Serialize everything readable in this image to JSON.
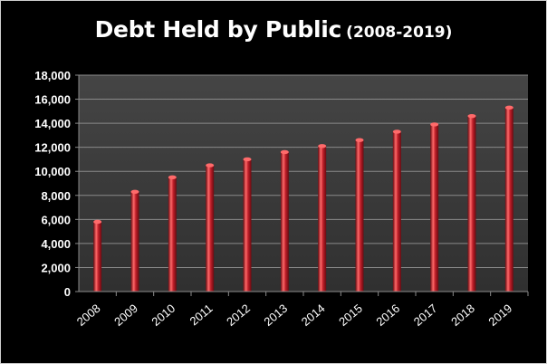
{
  "chart_data": {
    "type": "bar",
    "title": "Debt Held by Public",
    "subtitle": "(2008-2019)",
    "xlabel": "",
    "ylabel": "",
    "categories": [
      "2008",
      "2009",
      "2010",
      "2011",
      "2012",
      "2013",
      "2014",
      "2015",
      "2016",
      "2017",
      "2018",
      "2019"
    ],
    "values": [
      5800,
      8300,
      9500,
      10500,
      11000,
      11600,
      12100,
      12600,
      13300,
      13900,
      14600,
      15300
    ],
    "ylim": [
      0,
      18000
    ],
    "yticks": [
      0,
      2000,
      4000,
      6000,
      8000,
      10000,
      12000,
      14000,
      16000,
      18000
    ],
    "ytick_labels": [
      "0",
      "2,000",
      "4,000",
      "6,000",
      "8,000",
      "10,000",
      "12,000",
      "14,000",
      "16,000",
      "18,000"
    ],
    "grid": true,
    "legend": false,
    "colors": {
      "bar": "#c0202a",
      "bar_highlight": "#ff6a6a",
      "bar_shadow": "#6a0a10",
      "plot_background": "#3b3b3b",
      "page_background": "#000000",
      "gridline": "#8a8a8a",
      "text": "#ffffff"
    }
  }
}
